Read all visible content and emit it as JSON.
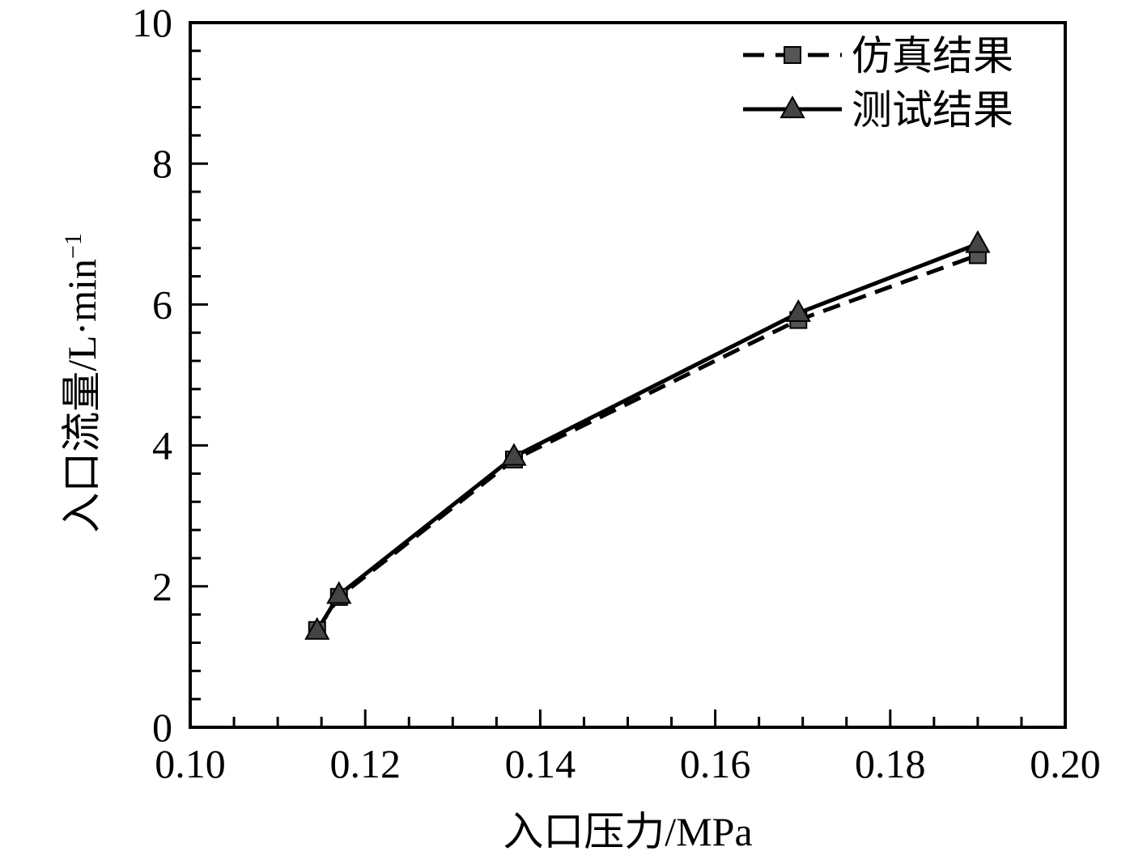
{
  "chart_data": {
    "type": "line",
    "xlabel": "入口压力/MPa",
    "ylabel": "入口流量/L·min",
    "ylabel_superscript": "−1",
    "xlim": [
      0.1,
      0.2
    ],
    "ylim": [
      0,
      10
    ],
    "x_ticks": [
      "0.10",
      "0.12",
      "0.14",
      "0.16",
      "0.18",
      "0.20"
    ],
    "y_ticks": [
      "0",
      "2",
      "4",
      "6",
      "8",
      "10"
    ],
    "grid": false,
    "legend_position": "top-right",
    "series": [
      {
        "name": "仿真结果",
        "line_style": "dashed",
        "marker": "square",
        "color": "#000000",
        "x": [
          0.1145,
          0.117,
          0.137,
          0.1695,
          0.19
        ],
        "y": [
          1.38,
          1.85,
          3.8,
          5.78,
          6.7
        ]
      },
      {
        "name": "测试结果",
        "line_style": "solid",
        "marker": "triangle",
        "color": "#000000",
        "x": [
          0.1145,
          0.117,
          0.137,
          0.1695,
          0.19
        ],
        "y": [
          1.37,
          1.88,
          3.84,
          5.88,
          6.86
        ]
      }
    ]
  }
}
